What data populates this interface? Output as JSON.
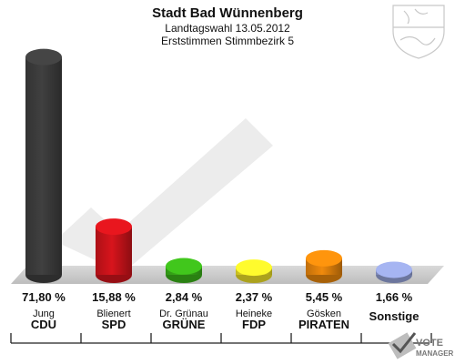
{
  "chart_data": {
    "type": "bar",
    "title": "Stadt Bad Wünnenberg",
    "subtitle_1": "Landtagswahl 13.05.2012",
    "subtitle_2": "Erststimmen Stimmbezirk 5",
    "unit": "%",
    "ylim": [
      0,
      72
    ],
    "categories": [
      {
        "candidate": "Jung",
        "party": "CDU",
        "value": 71.8,
        "value_label": "71,80 %",
        "color": "#404040"
      },
      {
        "candidate": "Blienert",
        "party": "SPD",
        "value": 15.88,
        "value_label": "15,88 %",
        "color": "#d8141c"
      },
      {
        "candidate": "Dr. Grünau",
        "party": "GRÜNE",
        "value": 2.84,
        "value_label": "2,84 %",
        "color": "#3cb81a"
      },
      {
        "candidate": "Heineke",
        "party": "FDP",
        "value": 2.37,
        "value_label": "2,37 %",
        "color": "#f5e82a"
      },
      {
        "candidate": "Gösken",
        "party": "PIRATEN",
        "value": 5.45,
        "value_label": "5,45 %",
        "color": "#f08a0c"
      },
      {
        "candidate": "",
        "party": "Sonstige",
        "value": 1.66,
        "value_label": "1,66 %",
        "color": "#9aa8e0"
      }
    ]
  },
  "branding": {
    "logo_line1": "VOTE",
    "logo_line2": "MANAGER",
    "emblem_icon": "nrw-coat-of-arms-icon",
    "logo_icon": "ballot-check-icon"
  }
}
